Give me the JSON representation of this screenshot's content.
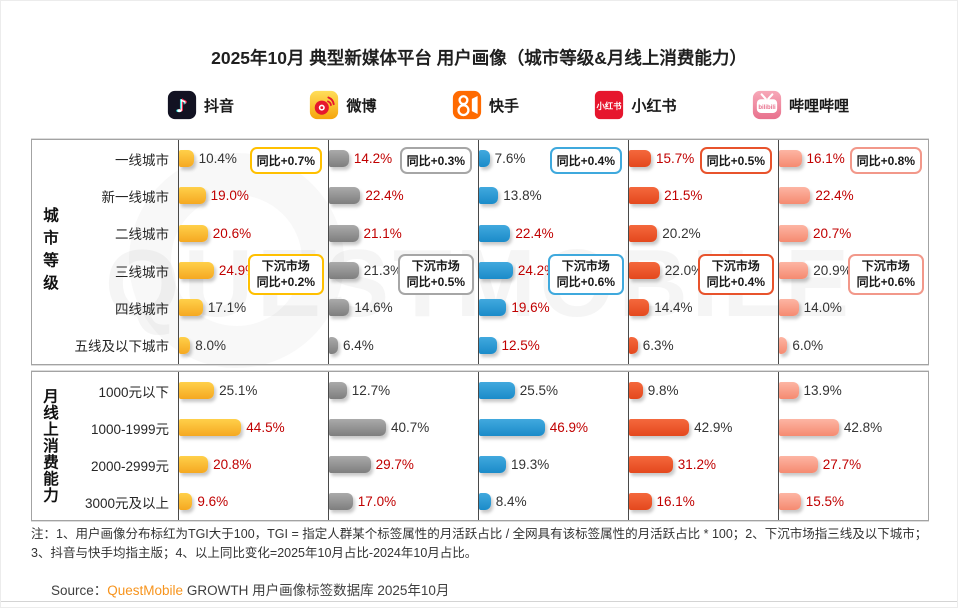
{
  "chart_data": {
    "type": "bar",
    "title": "2025年10月 典型新媒体平台 用户画像（城市等级&月线上消费能力）",
    "unit": "%",
    "value_note": "红色数值表示TGI大于100",
    "legend_position": "top",
    "tgi_red_color": "#C00000",
    "categories": [
      "一线城市",
      "新一线城市",
      "二线城市",
      "三线城市",
      "四线城市",
      "五线及以下城市",
      "1000元以下",
      "1000-1999元",
      "2000-2999元",
      "3000元及以上"
    ],
    "groups": [
      {
        "label": "城市等级",
        "start": 0,
        "count": 6
      },
      {
        "label": "月线上消费能力",
        "start": 6,
        "count": 4
      }
    ],
    "series": [
      {
        "key": "douyin",
        "name": "抖音",
        "icon": "douyin-icon",
        "values": [
          10.4,
          19.0,
          20.6,
          24.9,
          17.1,
          8.0,
          25.1,
          44.5,
          20.8,
          9.6
        ],
        "labels": [
          "10.4%",
          "19.0%",
          "20.6%",
          "24.9%",
          "17.1%",
          "8.0%",
          "25.1%",
          "44.5%",
          "20.8%",
          "9.6%"
        ],
        "tgi_over_100": [
          false,
          true,
          true,
          true,
          false,
          false,
          false,
          true,
          true,
          true
        ],
        "yoy_badge": "同比+0.7%",
        "sink_badge": [
          "下沉市场",
          "同比+0.2%"
        ],
        "bar_from": "#FFD04A",
        "bar_to": "#F5A821",
        "badge_border": "#FFC000"
      },
      {
        "key": "weibo",
        "name": "微博",
        "icon": "weibo-icon",
        "values": [
          14.2,
          22.4,
          21.1,
          21.3,
          14.6,
          6.4,
          12.7,
          40.7,
          29.7,
          17.0
        ],
        "labels": [
          "14.2%",
          "22.4%",
          "21.1%",
          "21.3%",
          "14.6%",
          "6.4%",
          "12.7%",
          "40.7%",
          "29.7%",
          "17.0%"
        ],
        "tgi_over_100": [
          true,
          true,
          true,
          false,
          false,
          false,
          false,
          false,
          true,
          true
        ],
        "yoy_badge": "同比+0.3%",
        "sink_badge": [
          "下沉市场",
          "同比+0.5%"
        ],
        "bar_from": "#AAAAAA",
        "bar_to": "#7E7E7E",
        "badge_border": "#A6A6A6"
      },
      {
        "key": "kuaishou",
        "name": "快手",
        "icon": "kuaishou-icon",
        "values": [
          7.6,
          13.8,
          22.4,
          24.2,
          19.6,
          12.5,
          25.5,
          46.9,
          19.3,
          8.4
        ],
        "labels": [
          "7.6%",
          "13.8%",
          "22.4%",
          "24.2%",
          "19.6%",
          "12.5%",
          "25.5%",
          "46.9%",
          "19.3%",
          "8.4%"
        ],
        "tgi_over_100": [
          false,
          false,
          true,
          true,
          true,
          true,
          false,
          true,
          false,
          false
        ],
        "yoy_badge": "同比+0.4%",
        "sink_badge": [
          "下沉市场",
          "同比+0.6%"
        ],
        "bar_from": "#41A9DE",
        "bar_to": "#1B8BC9",
        "badge_border": "#3FA9DD"
      },
      {
        "key": "xiaohongshu",
        "name": "小红书",
        "icon": "xiaohongshu-icon",
        "values": [
          15.7,
          21.5,
          20.2,
          22.0,
          14.4,
          6.3,
          9.8,
          42.9,
          31.2,
          16.1
        ],
        "labels": [
          "15.7%",
          "21.5%",
          "20.2%",
          "22.0%",
          "14.4%",
          "6.3%",
          "9.8%",
          "42.9%",
          "31.2%",
          "16.1%"
        ],
        "tgi_over_100": [
          true,
          true,
          false,
          false,
          false,
          false,
          false,
          false,
          true,
          true
        ],
        "yoy_badge": "同比+0.5%",
        "sink_badge": [
          "下沉市场",
          "同比+0.4%"
        ],
        "bar_from": "#F4683D",
        "bar_to": "#E4481D",
        "badge_border": "#E8532C"
      },
      {
        "key": "bilibili",
        "name": "哔哩哔哩",
        "icon": "bilibili-icon",
        "values": [
          16.1,
          22.4,
          20.7,
          20.9,
          14.0,
          6.0,
          13.9,
          42.8,
          27.7,
          15.5
        ],
        "labels": [
          "16.1%",
          "22.4%",
          "20.7%",
          "20.9%",
          "14.0%",
          "6.0%",
          "13.9%",
          "42.8%",
          "27.7%",
          "15.5%"
        ],
        "tgi_over_100": [
          true,
          true,
          true,
          false,
          false,
          false,
          false,
          false,
          true,
          true
        ],
        "yoy_badge": "同比+0.8%",
        "sink_badge": [
          "下沉市场",
          "同比+0.6%"
        ],
        "bar_from": "#FDB5A3",
        "bar_to": "#F58A70",
        "badge_border": "#F2988A"
      }
    ]
  },
  "note": "注：1、用户画像分布标红为TGI大于100，TGI = 指定人群某个标签属性的月活跃占比 / 全网具有该标签属性的月活跃占比 * 100；2、下沉市场指三线及以下城市；3、抖音与快手均指主版；4、以上同比变化=2025年10月占比-2024年10月占比。",
  "source": {
    "prefix": "Source：",
    "brand": "QuestMobile",
    "suffix": " GROWTH 用户画像标签数据库 2025年10月",
    "brand_color": "#F7941D"
  },
  "watermark": "QUESTMOBILE"
}
